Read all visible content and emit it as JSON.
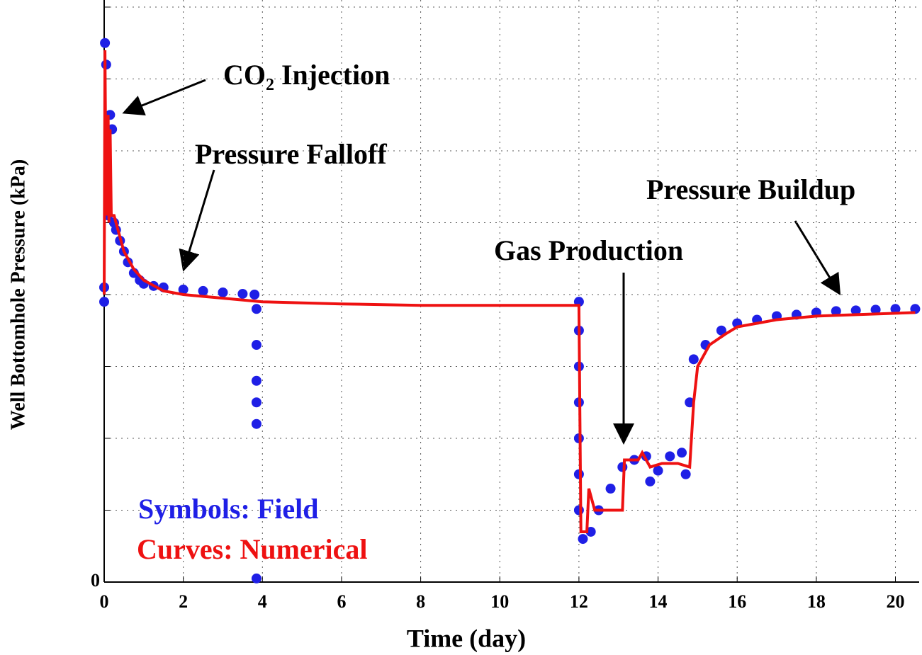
{
  "chart_data": {
    "type": "scatter-line",
    "xlabel": "Time (day)",
    "ylabel": "Well Bottomhole Pressure (kPa)",
    "xlim": [
      0,
      20.6
    ],
    "xticks": [
      0,
      2,
      4,
      6,
      8,
      10,
      12,
      14,
      16,
      18,
      20
    ],
    "ylim": [
      0,
      8
    ],
    "yticks": [
      0
    ],
    "y_gridlines": [
      1,
      2,
      3,
      4,
      5,
      6,
      7,
      8
    ],
    "grid": true,
    "annotations": [
      "CO₂ Injection",
      "Pressure Falloff",
      "Gas Production",
      "Pressure Buildup"
    ],
    "series": [
      {
        "name": "Symbols: Field",
        "color": "#1f1fe6",
        "mode": "markers",
        "x": [
          0,
          0,
          0.02,
          0.05,
          0.1,
          0.15,
          0.2,
          0.25,
          0.3,
          0.4,
          0.5,
          0.6,
          0.75,
          0.9,
          1.0,
          1.25,
          1.5,
          2,
          2.5,
          3,
          3.5,
          3.8,
          3.85,
          3.85,
          3.85,
          3.85,
          3.85,
          3.85,
          12.0,
          12.0,
          12.0,
          12.0,
          12.0,
          12.0,
          12.0,
          12.1,
          12.3,
          12.5,
          12.8,
          13.1,
          13.4,
          13.7,
          13.8,
          14.0,
          14.3,
          14.6,
          14.7,
          14.8,
          14.9,
          15.2,
          15.6,
          16,
          16.5,
          17,
          17.5,
          18,
          18.5,
          19,
          19.5,
          20,
          20.5
        ],
        "values": [
          3.9,
          4.1,
          7.5,
          7.2,
          5.1,
          6.5,
          6.3,
          5.0,
          4.9,
          4.75,
          4.6,
          4.45,
          4.3,
          4.2,
          4.15,
          4.12,
          4.1,
          4.07,
          4.05,
          4.03,
          4.01,
          4.0,
          3.8,
          3.3,
          2.8,
          2.5,
          2.2,
          0.05,
          3.9,
          3.5,
          3.0,
          2.5,
          2.0,
          1.5,
          1.0,
          0.6,
          0.7,
          1.0,
          1.3,
          1.6,
          1.7,
          1.75,
          1.4,
          1.55,
          1.75,
          1.8,
          1.5,
          2.5,
          3.1,
          3.3,
          3.5,
          3.6,
          3.65,
          3.7,
          3.72,
          3.75,
          3.77,
          3.78,
          3.79,
          3.8,
          3.8
        ]
      },
      {
        "name": "Curves: Numerical",
        "color": "#ee1111",
        "mode": "line",
        "x": [
          0,
          0.02,
          0.05,
          0.1,
          0.12,
          0.15,
          0.18,
          0.25,
          0.3,
          0.5,
          0.75,
          1,
          1.5,
          2,
          3,
          4,
          6,
          8,
          11.95,
          12.0,
          12.05,
          12.2,
          12.25,
          12.4,
          12.6,
          12.8,
          13.1,
          13.15,
          13.5,
          13.6,
          13.8,
          14.1,
          14.5,
          14.8,
          14.9,
          15.0,
          15.3,
          15.7,
          16,
          17,
          18,
          19,
          20.5
        ],
        "values": [
          4.0,
          7.4,
          5.1,
          6.5,
          5.0,
          6.3,
          5.1,
          5.1,
          5.0,
          4.6,
          4.35,
          4.2,
          4.05,
          4.0,
          3.95,
          3.9,
          3.87,
          3.85,
          3.85,
          3.85,
          0.7,
          0.7,
          1.3,
          1.0,
          1.0,
          1.0,
          1.0,
          1.7,
          1.7,
          1.8,
          1.6,
          1.65,
          1.65,
          1.6,
          2.5,
          3.0,
          3.3,
          3.45,
          3.55,
          3.65,
          3.7,
          3.72,
          3.75
        ]
      }
    ]
  }
}
